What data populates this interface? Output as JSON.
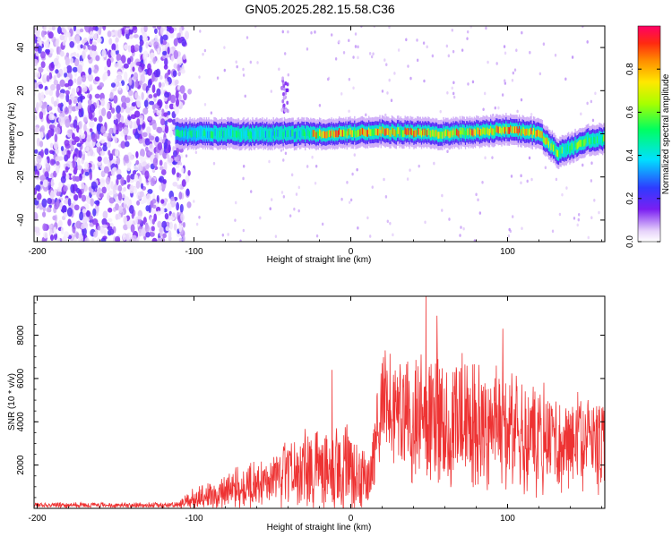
{
  "title": "GN05.2025.282.15.58.C36",
  "chart_data": [
    {
      "type": "heatmap",
      "title": "GN05.2025.282.15.58.C36",
      "xlabel": "Height of straight line (km)",
      "ylabel": "Frequency (Hz)",
      "xlim": [
        -202,
        162
      ],
      "ylim": [
        -50,
        50
      ],
      "xticks": [
        -200,
        -100,
        0,
        100
      ],
      "yticks": [
        -40,
        -20,
        0,
        20,
        40
      ],
      "colorbar": {
        "label": "Normalized spectral amplitude",
        "range": [
          0,
          1
        ],
        "ticks": [
          0,
          0.2,
          0.4,
          0.6,
          0.8
        ],
        "ticklabels": [
          "0.0",
          "0.2",
          "0.4",
          "0.6",
          "0.8"
        ]
      },
      "features": {
        "noise_region_x": [
          -202,
          -110
        ],
        "noise_amplitude": 0.15,
        "signal_band_center": [
          {
            "x": -110,
            "y": 0
          },
          {
            "x": -60,
            "y": 0
          },
          {
            "x": -20,
            "y": 0
          },
          {
            "x": 20,
            "y": 1
          },
          {
            "x": 60,
            "y": 0
          },
          {
            "x": 100,
            "y": 2
          },
          {
            "x": 120,
            "y": 0
          },
          {
            "x": 132,
            "y": -9
          },
          {
            "x": 150,
            "y": -3
          },
          {
            "x": 162,
            "y": -2
          }
        ],
        "signal_peak_amplitude": 0.95,
        "spur_x": -42,
        "spur_y": [
          10,
          26
        ]
      }
    },
    {
      "type": "line",
      "xlabel": "Height of straight line (km)",
      "ylabel": "SNR (10 * v/v)",
      "xlim": [
        -202,
        162
      ],
      "ylim": [
        0,
        9800
      ],
      "xticks": [
        -200,
        -100,
        0,
        100
      ],
      "yticks": [
        2000,
        4000,
        6000,
        8000
      ],
      "color": "#ee3333",
      "series": [
        {
          "name": "SNR",
          "envelope": [
            {
              "x": -202,
              "mean": 150,
              "amp": 130
            },
            {
              "x": -110,
              "mean": 150,
              "amp": 150
            },
            {
              "x": -100,
              "mean": 450,
              "amp": 550
            },
            {
              "x": -50,
              "mean": 1300,
              "amp": 1500
            },
            {
              "x": -20,
              "mean": 2000,
              "amp": 2400
            },
            {
              "x": 0,
              "mean": 1800,
              "amp": 2200
            },
            {
              "x": 12,
              "mean": 1200,
              "amp": 1600
            },
            {
              "x": 20,
              "mean": 4800,
              "amp": 2600
            },
            {
              "x": 45,
              "mean": 4200,
              "amp": 3800
            },
            {
              "x": 90,
              "mean": 3700,
              "amp": 3400
            },
            {
              "x": 130,
              "mean": 3200,
              "amp": 2700
            },
            {
              "x": 162,
              "mean": 2900,
              "amp": 2400
            }
          ],
          "peaks": [
            {
              "x": 48,
              "y": 9800
            },
            {
              "x": 55,
              "y": 8900
            },
            {
              "x": 97,
              "y": 8300
            },
            {
              "x": 22,
              "y": 7300
            },
            {
              "x": -12,
              "y": 6400
            }
          ]
        }
      ]
    }
  ]
}
